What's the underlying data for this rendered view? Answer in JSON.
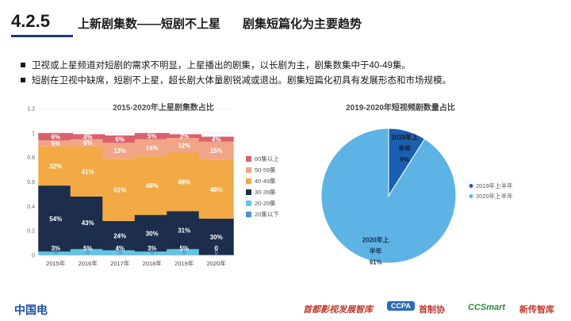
{
  "header": {
    "section_number": "4.2.5",
    "title": "上新剧集数——短剧不上星",
    "subtitle": "剧集短篇化为主要趋势"
  },
  "bullets": [
    "卫视或上星频道对短剧的需求不明显，上星播出的剧集，以长剧为主，剧集数集中于40-49集。",
    "短剧在卫视中缺席，短剧不上星，超长剧大体量剧锐减或退出。剧集短篇化初具有发展形态和市场规模。"
  ],
  "chart_data": [
    {
      "type": "bar",
      "stacked": true,
      "title": "2015-2020年上星剧集数占比",
      "categories": [
        "2015年",
        "2016年",
        "2017年",
        "2018年",
        "2019年",
        "2020年"
      ],
      "ylim": [
        0,
        1.2
      ],
      "yticks": [
        "0",
        "0.2",
        "0.4",
        "0.6",
        "0.8",
        "1",
        "1.2"
      ],
      "legend_position": "right",
      "series": [
        {
          "name": "20集以下",
          "color": "#4a8fd0",
          "values": [
            0,
            0,
            0,
            0,
            0,
            0
          ],
          "labels": [
            "0",
            "0",
            "0",
            "0",
            "0",
            "0"
          ]
        },
        {
          "name": "20-29集",
          "color": "#5ec5e6",
          "values": [
            0.03,
            0.05,
            0.04,
            0.03,
            0.05,
            0
          ],
          "labels": [
            "3%",
            "5%",
            "4%",
            "3%",
            "5%",
            "0"
          ]
        },
        {
          "name": "30-39集",
          "color": "#1c2e4c",
          "values": [
            0.54,
            0.43,
            0.24,
            0.3,
            0.31,
            0.3
          ],
          "labels": [
            "54%",
            "43%",
            "24%",
            "30%",
            "31%",
            "30%"
          ]
        },
        {
          "name": "40-49集",
          "color": "#f3aa45",
          "values": [
            0.32,
            0.41,
            0.51,
            0.48,
            0.48,
            0.48
          ],
          "labels": [
            "32%",
            "41%",
            "51%",
            "48%",
            "48%",
            "48%"
          ]
        },
        {
          "name": "50-59集",
          "color": "#f2a486",
          "values": [
            0.05,
            0.06,
            0.13,
            0.14,
            0.12,
            0.15
          ],
          "labels": [
            "5%",
            "6%",
            "13%",
            "14%",
            "12%",
            "15%"
          ]
        },
        {
          "name": "60集以上",
          "color": "#d9616e",
          "values": [
            0.06,
            0.04,
            0.06,
            0.05,
            0.03,
            0.04
          ],
          "labels": [
            "6%",
            "4%",
            "6%",
            "5%",
            "3%",
            "4%"
          ]
        }
      ]
    },
    {
      "type": "pie",
      "title": "2019-2020年短视频剧数量占比",
      "legend_position": "right",
      "slices": [
        {
          "name": "2019年上半年",
          "value": 9,
          "color": "#1a5fb0",
          "label_lines": [
            "2019年上",
            "半年",
            "9%"
          ]
        },
        {
          "name": "2020年上半年",
          "value": 91,
          "color": "#5db4e4",
          "label_lines": [
            "2020年上",
            "半年",
            "91%"
          ]
        }
      ]
    }
  ],
  "footer": {
    "left_text": "中国电",
    "logo1": "首都影视发展智库",
    "logo2": "CCPA",
    "logo2_text": "首制协",
    "logo3": "CCSmart",
    "logo3_text": "新传智库"
  }
}
